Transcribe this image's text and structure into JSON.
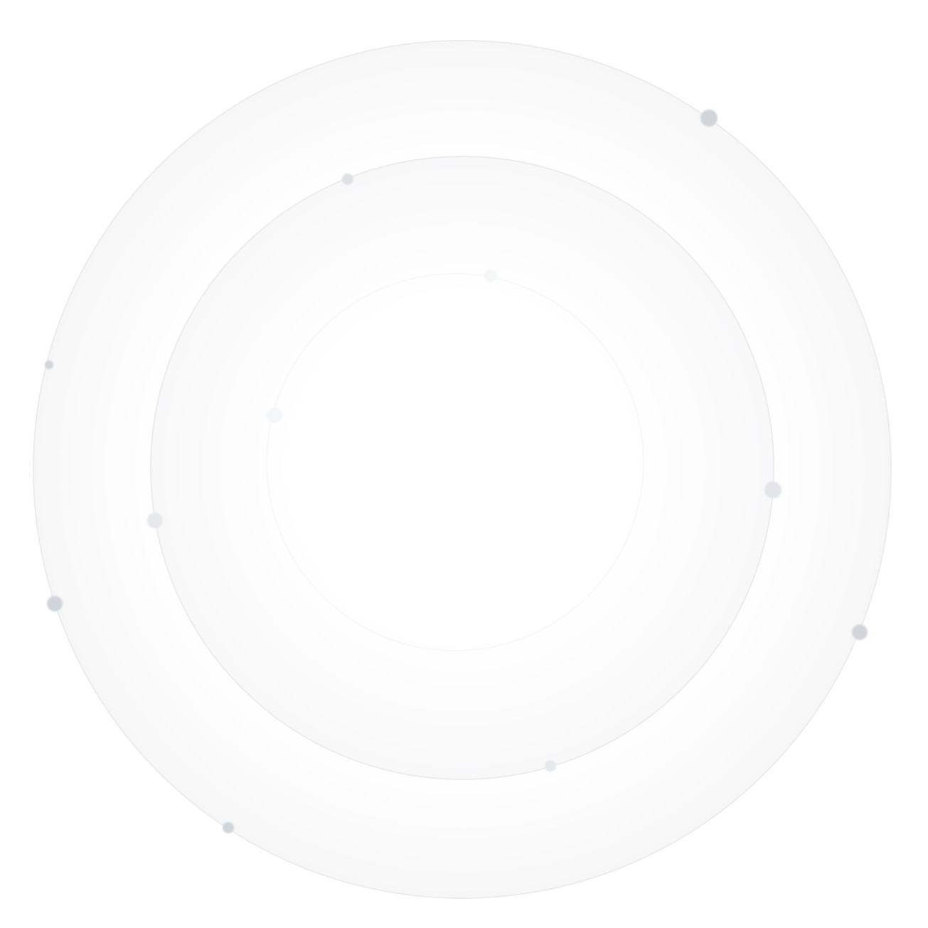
{
  "colors": {
    "background": "#ffffff",
    "ring_stroke": "#ececee",
    "ring_fill_edge": "#f7f7f8",
    "dot": "#d1d5db",
    "dot_light": "#e3e5e9",
    "dot_faint": "#f3f4f6"
  }
}
